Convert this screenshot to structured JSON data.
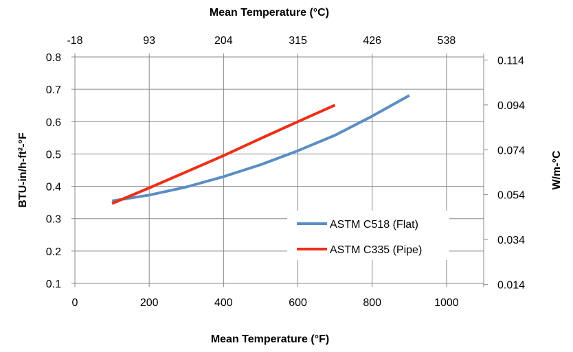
{
  "chart_data": {
    "type": "line",
    "title": "",
    "xlabel": "Mean Temperature (°F)",
    "x2label": "Mean Temperature (°C)",
    "ylabel": "BTU-in/h-ft²-°F",
    "y2label": "W/m-°C",
    "xlim": [
      0,
      1100
    ],
    "ylim": [
      0.1,
      0.8
    ],
    "x_ticks": [
      "0",
      "200",
      "400",
      "600",
      "800",
      "1000"
    ],
    "x2_ticks": [
      "-18",
      "93",
      "204",
      "315",
      "426",
      "538"
    ],
    "y_ticks": [
      "0.1",
      "0.2",
      "0.3",
      "0.4",
      "0.5",
      "0.6",
      "0.7",
      "0.8"
    ],
    "y2_ticks": [
      "0.014",
      "0.034",
      "0.054",
      "0.074",
      "0.094",
      "0.114"
    ],
    "grid": true,
    "legend_position": "lower-right",
    "series": [
      {
        "name": "ASTM C518 (Flat)",
        "color": "#5b8ec4",
        "x": [
          100,
          200,
          300,
          400,
          500,
          600,
          700,
          800,
          900
        ],
        "y": [
          0.355,
          0.373,
          0.398,
          0.43,
          0.467,
          0.51,
          0.558,
          0.617,
          0.681
        ]
      },
      {
        "name": "ASTM C335 (Pipe)",
        "color": "#ee2e17",
        "x": [
          100,
          200,
          300,
          400,
          500,
          600,
          700
        ],
        "y": [
          0.347,
          0.395,
          0.445,
          0.495,
          0.548,
          0.6,
          0.651
        ]
      }
    ]
  }
}
